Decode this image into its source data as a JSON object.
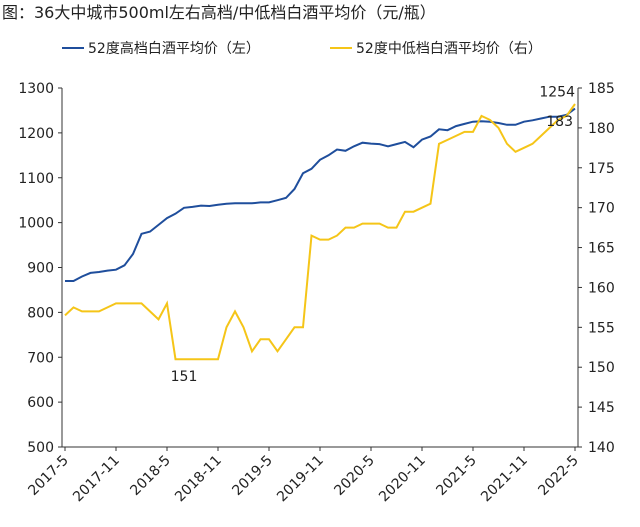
{
  "chart_data": {
    "type": "line",
    "title": "图：36大中城市500ml左右高档/中低档白酒平均价（元/瓶）",
    "categories": [
      "2017-5",
      null,
      null,
      null,
      null,
      null,
      "2017-11",
      null,
      null,
      null,
      null,
      null,
      "2018-5",
      null,
      null,
      null,
      null,
      null,
      "2018-11",
      null,
      null,
      null,
      null,
      null,
      "2019-5",
      null,
      null,
      null,
      null,
      null,
      "2019-11",
      null,
      null,
      null,
      null,
      null,
      "2020-5",
      null,
      null,
      null,
      null,
      null,
      "2020-11",
      null,
      null,
      null,
      null,
      null,
      "2021-5",
      null,
      null,
      null,
      null,
      null,
      "2021-11",
      null,
      null,
      null,
      null,
      null,
      "2022-5"
    ],
    "series": [
      {
        "name": "52度高档白酒平均价（左）",
        "color": "#1f4e9c",
        "values": [
          870,
          870,
          880,
          888,
          890,
          893,
          895,
          905,
          930,
          975,
          980,
          995,
          1010,
          1020,
          1033,
          1035,
          1038,
          1037,
          1040,
          1042,
          1043,
          1043,
          1043,
          1045,
          1045,
          1050,
          1055,
          1075,
          1110,
          1120,
          1140,
          1150,
          1163,
          1160,
          1170,
          1178,
          1176,
          1175,
          1170,
          1175,
          1180,
          1168,
          1185,
          1192,
          1208,
          1206,
          1215,
          1220,
          1225,
          1226,
          1225,
          1222,
          1218,
          1218,
          1225,
          1228,
          1232,
          1236,
          1236,
          1240,
          1254
        ],
        "value_labels": [
          null,
          null,
          null,
          null,
          null,
          null,
          null,
          null,
          null,
          null,
          null,
          null,
          null,
          null,
          null,
          null,
          null,
          null,
          null,
          null,
          null,
          null,
          null,
          null,
          null,
          null,
          null,
          null,
          null,
          null,
          null,
          null,
          null,
          null,
          null,
          null,
          null,
          null,
          null,
          null,
          null,
          null,
          null,
          null,
          null,
          null,
          null,
          null,
          null,
          null,
          null,
          null,
          null,
          null,
          null,
          null,
          null,
          null,
          null,
          null,
          "1254"
        ]
      },
      {
        "name": "52度中低档白酒平均价（右）",
        "color": "#f5c518",
        "axis": "y2",
        "values": [
          156.5,
          157.5,
          157,
          157,
          157,
          157.5,
          158,
          158,
          158,
          158,
          157,
          156,
          158,
          151,
          151,
          151,
          151,
          151,
          151,
          155,
          157,
          155,
          152,
          153.5,
          153.5,
          152,
          153.5,
          155,
          155,
          166.5,
          166,
          166,
          166.5,
          167.5,
          167.5,
          168,
          168,
          168,
          167.5,
          167.5,
          169.5,
          169.5,
          170,
          170.5,
          178,
          178.5,
          179,
          179.5,
          179.5,
          181.5,
          181,
          180,
          178,
          177,
          177.5,
          178,
          179,
          180,
          181,
          181.5,
          183
        ],
        "value_labels": [
          null,
          null,
          null,
          null,
          null,
          null,
          null,
          null,
          null,
          null,
          null,
          null,
          null,
          null,
          "151",
          null,
          null,
          null,
          null,
          null,
          null,
          null,
          null,
          null,
          null,
          null,
          null,
          null,
          null,
          null,
          null,
          null,
          null,
          null,
          null,
          null,
          null,
          null,
          null,
          null,
          null,
          null,
          null,
          null,
          null,
          null,
          null,
          null,
          null,
          null,
          null,
          null,
          null,
          null,
          null,
          null,
          null,
          null,
          null,
          null,
          "183"
        ]
      }
    ],
    "ylim": [
      500,
      1300
    ],
    "yticks": [
      500,
      600,
      700,
      800,
      900,
      1000,
      1100,
      1200,
      1300
    ],
    "y2lim": [
      140,
      185
    ],
    "y2ticks": [
      140,
      145,
      150,
      155,
      160,
      165,
      170,
      175,
      180,
      185
    ]
  }
}
